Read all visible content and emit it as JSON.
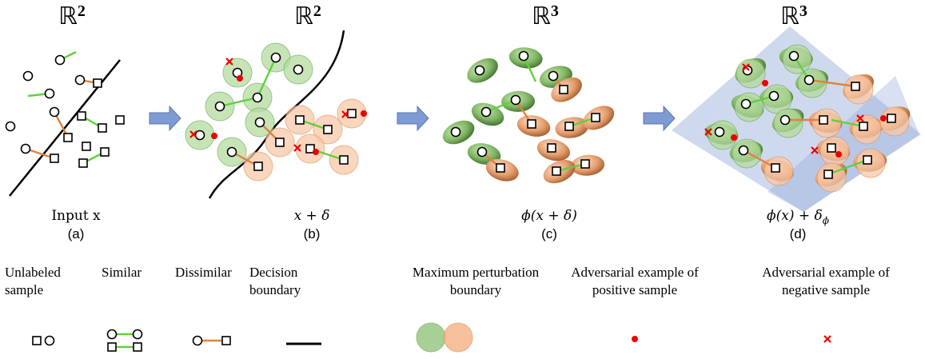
{
  "panels": [
    {
      "space": "ℝ",
      "power": "2",
      "caption": "Input x",
      "label": "(a)"
    },
    {
      "space": "ℝ",
      "power": "2",
      "caption": "x + δ",
      "label": "(b)"
    },
    {
      "space": "ℝ",
      "power": "3",
      "caption": "ϕ(x + δ)",
      "label": "(c)"
    },
    {
      "space": "ℝ",
      "power": "3",
      "caption": "ϕ(x) + δ",
      "caption_sub": "ϕ",
      "label": "(d)"
    }
  ],
  "legend": [
    {
      "lines": [
        "Unlabeled",
        "sample"
      ]
    },
    {
      "lines": [
        "Similar"
      ]
    },
    {
      "lines": [
        "Dissimilar"
      ]
    },
    {
      "lines": [
        "Decision",
        "boundary"
      ]
    },
    {
      "lines": [
        "Maximum perturbation",
        "boundary"
      ]
    },
    {
      "lines": [
        "Adversarial example of",
        "positive sample"
      ]
    },
    {
      "lines": [
        "Adversarial example of",
        "negative sample"
      ]
    }
  ]
}
